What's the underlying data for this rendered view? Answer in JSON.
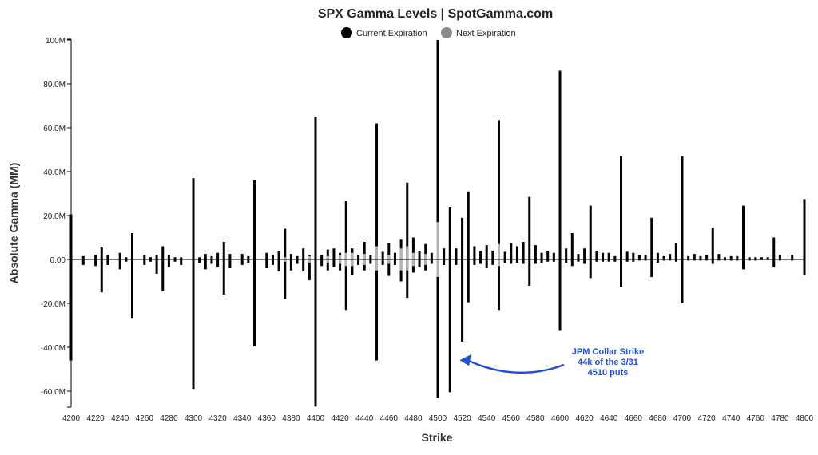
{
  "chart_data": {
    "type": "bar",
    "title": "SPX Gamma Levels | SpotGamma.com",
    "xlabel": "Strike",
    "ylabel": "Absolute Gamma (MM)",
    "ylim": [
      -68,
      102
    ],
    "xlim": [
      4200,
      4800
    ],
    "y_ticks": [
      -60,
      -40,
      -20,
      0,
      20,
      40,
      60,
      80,
      100
    ],
    "y_tick_labels": [
      "-60.0M",
      "-40.0M",
      "-20.0M",
      "0.00",
      "20.0M",
      "40.0M",
      "60.0M",
      "80.0M",
      "100M"
    ],
    "x_ticks": [
      4200,
      4220,
      4240,
      4260,
      4280,
      4300,
      4320,
      4340,
      4360,
      4380,
      4400,
      4420,
      4440,
      4460,
      4480,
      4500,
      4520,
      4540,
      4560,
      4580,
      4600,
      4620,
      4640,
      4660,
      4680,
      4700,
      4720,
      4740,
      4760,
      4780,
      4800
    ],
    "x_tick_labels": [
      "4200",
      "4220",
      "4240",
      "4260",
      "4280",
      "4300",
      "4320",
      "4340",
      "4360",
      "4380",
      "4400",
      "4420",
      "4440",
      "4460",
      "4480",
      "4500",
      "4520",
      "4540",
      "4560",
      "4580",
      "4600",
      "4620",
      "4640",
      "4660",
      "4680",
      "4700",
      "4720",
      "4740",
      "4760",
      "4780",
      "4800"
    ],
    "legend": {
      "placement": "top-center"
    },
    "series": [
      {
        "name": "Current Expiration",
        "color": "#000000",
        "points": [
          [
            4200,
            20.5,
            -46
          ],
          [
            4210,
            1.5,
            -2.5
          ],
          [
            4220,
            2,
            -3
          ],
          [
            4225,
            5.5,
            -15
          ],
          [
            4230,
            2,
            -2.5
          ],
          [
            4240,
            3,
            -4.5
          ],
          [
            4245,
            1,
            -1
          ],
          [
            4250,
            12,
            -27
          ],
          [
            4260,
            2,
            -2.5
          ],
          [
            4265,
            1,
            -1
          ],
          [
            4270,
            2,
            -6.5
          ],
          [
            4275,
            6,
            -14.5
          ],
          [
            4280,
            2,
            -3.5
          ],
          [
            4285,
            1,
            -1
          ],
          [
            4290,
            1,
            -2.5
          ],
          [
            4300,
            37,
            -59
          ],
          [
            4305,
            1,
            -1.5
          ],
          [
            4310,
            2.5,
            -4.5
          ],
          [
            4315,
            1.5,
            -2
          ],
          [
            4320,
            3,
            -3.5
          ],
          [
            4325,
            8,
            -16
          ],
          [
            4330,
            2.5,
            -4
          ],
          [
            4340,
            2.5,
            -2.5
          ],
          [
            4345,
            1.5,
            -1.5
          ],
          [
            4350,
            36,
            -39.5
          ],
          [
            4360,
            3,
            -4
          ],
          [
            4365,
            2,
            -2.5
          ],
          [
            4370,
            4,
            -5.5
          ],
          [
            4375,
            14,
            -18
          ],
          [
            4380,
            2.5,
            -5
          ],
          [
            4385,
            1.5,
            -2
          ],
          [
            4390,
            5,
            -5.5
          ],
          [
            4395,
            2,
            -9.5
          ],
          [
            4400,
            65,
            -67
          ],
          [
            4405,
            2,
            -3
          ],
          [
            4410,
            4.5,
            -5
          ],
          [
            4415,
            5,
            -3.5
          ],
          [
            4420,
            3,
            -5
          ],
          [
            4425,
            26.5,
            -23
          ],
          [
            4430,
            5,
            -7
          ],
          [
            4435,
            2,
            -2.5
          ],
          [
            4440,
            8,
            -5
          ],
          [
            4445,
            2,
            -2
          ],
          [
            4450,
            62,
            -46
          ],
          [
            4455,
            3.5,
            -2.5
          ],
          [
            4460,
            7.5,
            -7.5
          ],
          [
            4465,
            3,
            -2.5
          ],
          [
            4470,
            9,
            -10
          ],
          [
            4475,
            35,
            -17.5
          ],
          [
            4480,
            10,
            -6
          ],
          [
            4485,
            4,
            -3.5
          ],
          [
            4490,
            7,
            -5
          ],
          [
            4495,
            3,
            -2
          ],
          [
            4500,
            100,
            -63
          ],
          [
            4505,
            5,
            -2.5
          ],
          [
            4510,
            24,
            -60.5
          ],
          [
            4515,
            5,
            -2.5
          ],
          [
            4520,
            19,
            -37.5
          ],
          [
            4525,
            31,
            -19.5
          ],
          [
            4530,
            6,
            -2.5
          ],
          [
            4535,
            4,
            -2
          ],
          [
            4540,
            6.5,
            -4
          ],
          [
            4545,
            4,
            -2.5
          ],
          [
            4550,
            63.5,
            -23
          ],
          [
            4555,
            3.5,
            -1.5
          ],
          [
            4560,
            7.5,
            -2
          ],
          [
            4565,
            6,
            -1.5
          ],
          [
            4570,
            8,
            -2
          ],
          [
            4575,
            28.5,
            -12
          ],
          [
            4580,
            6.5,
            -2
          ],
          [
            4585,
            3,
            -1.5
          ],
          [
            4590,
            4,
            -1
          ],
          [
            4595,
            3,
            -1
          ],
          [
            4600,
            86,
            -32.5
          ],
          [
            4605,
            5,
            -1.5
          ],
          [
            4610,
            12,
            -3
          ],
          [
            4615,
            2.5,
            -1
          ],
          [
            4620,
            5,
            -2
          ],
          [
            4625,
            24.5,
            -8.5
          ],
          [
            4630,
            4,
            -1
          ],
          [
            4635,
            3,
            -1
          ],
          [
            4640,
            3,
            -1
          ],
          [
            4645,
            1.5,
            -1
          ],
          [
            4650,
            47,
            -12.5
          ],
          [
            4655,
            3.5,
            -1
          ],
          [
            4660,
            3,
            -1
          ],
          [
            4665,
            2,
            -0.5
          ],
          [
            4670,
            2,
            -0.5
          ],
          [
            4675,
            19,
            -8
          ],
          [
            4680,
            3,
            -1.5
          ],
          [
            4685,
            1.5,
            -0.5
          ],
          [
            4690,
            2.5,
            -0.5
          ],
          [
            4695,
            7.5,
            -1
          ],
          [
            4700,
            47,
            -20
          ],
          [
            4705,
            1.5,
            -0.5
          ],
          [
            4710,
            2.5,
            -0.5
          ],
          [
            4715,
            1.5,
            -0.5
          ],
          [
            4720,
            2,
            -0.5
          ],
          [
            4725,
            14.5,
            -2
          ],
          [
            4730,
            2.5,
            -0.5
          ],
          [
            4735,
            1,
            -0.5
          ],
          [
            4740,
            1.5,
            -0.5
          ],
          [
            4745,
            1.5,
            -0.5
          ],
          [
            4750,
            24.5,
            -4.5
          ],
          [
            4755,
            1,
            -0.5
          ],
          [
            4760,
            1,
            -0.5
          ],
          [
            4765,
            1,
            -0.3
          ],
          [
            4770,
            1,
            -0.3
          ],
          [
            4775,
            10,
            -3.5
          ],
          [
            4780,
            2,
            -0.5
          ],
          [
            4790,
            2,
            -0.5
          ],
          [
            4800,
            27.5,
            -7
          ]
        ]
      },
      {
        "name": "Next Expiration",
        "color": "#b3b3b3",
        "points": [
          [
            4375,
            1,
            -1
          ],
          [
            4395,
            1.5,
            -1.5
          ],
          [
            4410,
            1.5,
            -1.5
          ],
          [
            4420,
            2,
            -2
          ],
          [
            4425,
            3,
            -3
          ],
          [
            4430,
            3,
            -3
          ],
          [
            4440,
            2.5,
            -2.5
          ],
          [
            4450,
            6,
            -5
          ],
          [
            4460,
            2,
            -2
          ],
          [
            4470,
            5,
            -5
          ],
          [
            4475,
            6,
            -5
          ],
          [
            4480,
            3,
            -3
          ],
          [
            4490,
            2.5,
            -2.5
          ],
          [
            4500,
            17,
            -8
          ],
          [
            4550,
            7,
            -3
          ]
        ]
      }
    ],
    "annotations": [
      {
        "lines": [
          "JPM Collar Strike",
          "44k of the 3/31",
          "4510 puts"
        ],
        "x": 4510,
        "y": -51,
        "color": "#1f4fd8"
      }
    ]
  }
}
